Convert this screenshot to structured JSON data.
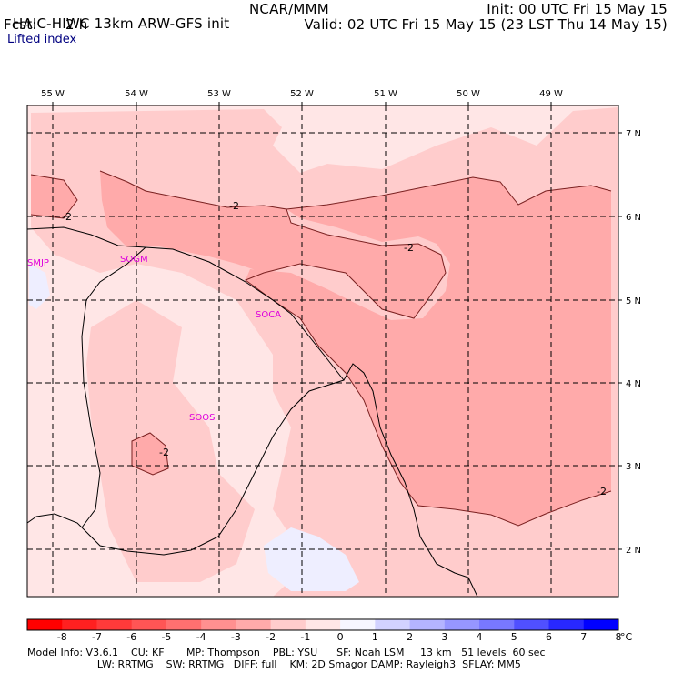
{
  "header": {
    "model": "HAIC-HIWC 13km ARW-GFS init",
    "org": "NCAR/MMM",
    "init": "Init: 00 UTC Fri 15 May 15",
    "fcst_label": "Fcst:",
    "fcst_value": "2 h",
    "valid": "Valid: 02 UTC Fri 15 May 15 (23 LST Thu 14 May 15)",
    "field": "Lifted index"
  },
  "map": {
    "lon_labels": [
      "55 W",
      "54 W",
      "53 W",
      "52 W",
      "51 W",
      "50 W",
      "49 W"
    ],
    "lat_labels": [
      "7 N",
      "6 N",
      "5 N",
      "4 N",
      "3 N",
      "2 N"
    ],
    "stations": [
      "SMJP",
      "SOGM",
      "SOCA",
      "SOOS"
    ],
    "contour_labels": [
      "-2",
      "-2",
      "-2",
      "-2",
      "-2"
    ]
  },
  "legend": {
    "ticks": [
      "-8",
      "-7",
      "-6",
      "-5",
      "-4",
      "-3",
      "-2",
      "-1",
      "0",
      "1",
      "2",
      "3",
      "4",
      "5",
      "6",
      "7",
      "8"
    ],
    "unit": "°C",
    "colors": [
      "#ff0000",
      "#ff2020",
      "#ff3a3a",
      "#ff5555",
      "#ff7070",
      "#ff9090",
      "#ffaaaa",
      "#ffcccc",
      "#ffe6e6",
      "#f6f6ff",
      "#d2d2ff",
      "#b4b4ff",
      "#9696ff",
      "#7878ff",
      "#5050ff",
      "#2828ff",
      "#0000ff"
    ]
  },
  "footer": {
    "line1": "Model Info: V3.6.1    CU: KF       MP: Thompson    PBL: YSU      SF: Noah LSM     13 km   51 levels  60 sec",
    "line2": "                      LW: RRTMG    SW: RRTMG   DIFF: full    KM: 2D Smagor DAMP: Rayleigh3  SFLAY: MM5"
  }
}
